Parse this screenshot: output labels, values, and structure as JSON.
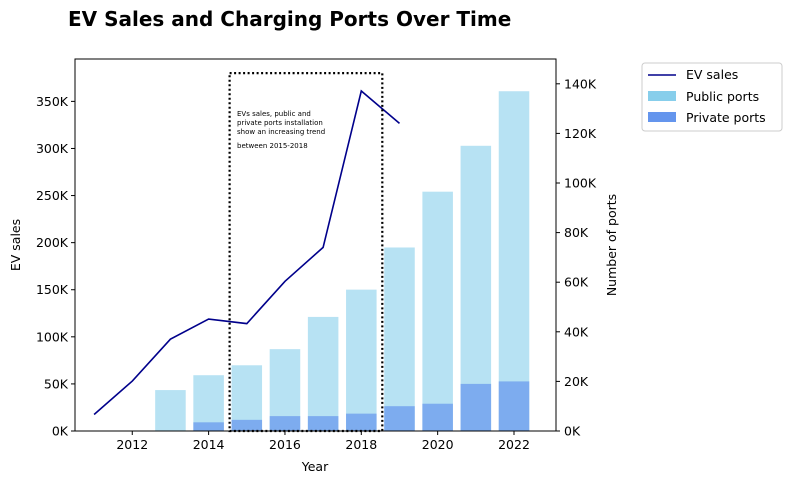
{
  "chart_data": {
    "type": "bar",
    "title": "EV Sales and Charging Ports Over Time",
    "xlabel": "Year",
    "ylabel_left": "EV sales",
    "ylabel_right": "Number of ports",
    "xlim": [
      2010.5,
      2023.1
    ],
    "ylim_left": [
      0,
      395000
    ],
    "ylim_right": [
      0,
      150000
    ],
    "x_ticks": [
      2012,
      2014,
      2016,
      2018,
      2020,
      2022
    ],
    "x_tick_labels": [
      "2012",
      "2014",
      "2016",
      "2018",
      "2020",
      "2022"
    ],
    "y_left_ticks": [
      0,
      50000,
      100000,
      150000,
      200000,
      250000,
      300000,
      350000
    ],
    "y_left_tick_labels": [
      "0K",
      "50K",
      "100K",
      "150K",
      "200K",
      "250K",
      "300K",
      "350K"
    ],
    "y_right_ticks": [
      0,
      20000,
      40000,
      60000,
      80000,
      100000,
      120000,
      140000
    ],
    "y_right_tick_labels": [
      "0K",
      "20K",
      "40K",
      "60K",
      "80K",
      "100K",
      "120K",
      "140K"
    ],
    "grid": false,
    "legend_position": "outside-right",
    "series": [
      {
        "name": "EV sales",
        "type": "line",
        "axis": "left",
        "color": "#00008b",
        "x": [
          2011,
          2012,
          2013,
          2014,
          2015,
          2016,
          2017,
          2018,
          2019
        ],
        "values": [
          17500,
          53000,
          97500,
          118800,
          114000,
          159000,
          195000,
          361000,
          326600
        ]
      },
      {
        "name": "Public ports",
        "type": "bar",
        "axis": "right",
        "color": "#87ceeb",
        "x": [
          2011,
          2012,
          2013,
          2014,
          2015,
          2016,
          2017,
          2018,
          2019,
          2020,
          2021,
          2022
        ],
        "values": [
          0,
          0,
          16500,
          22500,
          26500,
          33000,
          46000,
          57000,
          74000,
          96500,
          115000,
          137000
        ]
      },
      {
        "name": "Private ports",
        "type": "bar",
        "axis": "right",
        "color": "#6495ed",
        "x": [
          2011,
          2012,
          2013,
          2014,
          2015,
          2016,
          2017,
          2018,
          2019,
          2020,
          2021,
          2022
        ],
        "values": [
          0,
          0,
          0,
          3500,
          4500,
          6000,
          6000,
          7000,
          10000,
          11000,
          19000,
          20000
        ]
      }
    ],
    "annotation": {
      "lines": [
        "EVs sales, public and",
        "private ports installation",
        "show an increasing trend",
        "between 2015-2018"
      ],
      "box_x": [
        2014.55,
        2018.55
      ],
      "box_y_left": [
        0,
        380000
      ]
    }
  }
}
